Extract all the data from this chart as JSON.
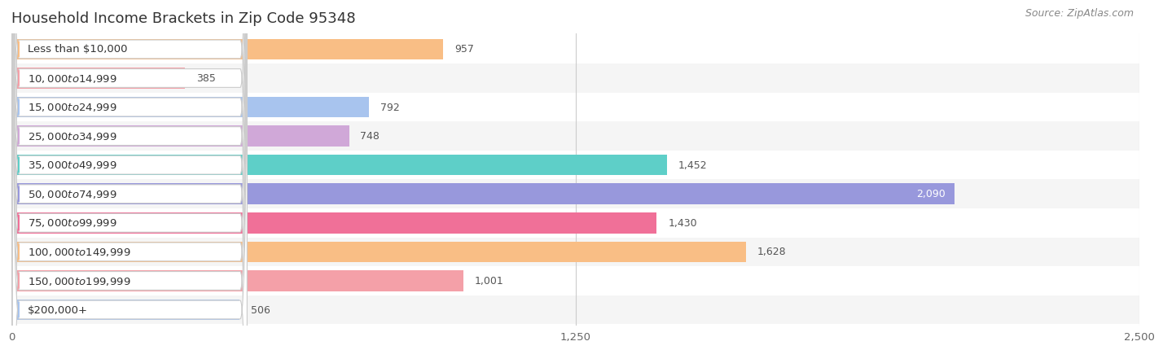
{
  "title": "Household Income Brackets in Zip Code 95348",
  "source": "Source: ZipAtlas.com",
  "categories": [
    "Less than $10,000",
    "$10,000 to $14,999",
    "$15,000 to $24,999",
    "$25,000 to $34,999",
    "$35,000 to $49,999",
    "$50,000 to $74,999",
    "$75,000 to $99,999",
    "$100,000 to $149,999",
    "$150,000 to $199,999",
    "$200,000+"
  ],
  "values": [
    957,
    385,
    792,
    748,
    1452,
    2090,
    1430,
    1628,
    1001,
    506
  ],
  "bar_colors": [
    "#F9BE85",
    "#F4A0A8",
    "#A8C4EE",
    "#D0A8D8",
    "#5ECFC8",
    "#9898DC",
    "#F07098",
    "#F9BE85",
    "#F4A0A8",
    "#A8C4EE"
  ],
  "bg_color": "#ffffff",
  "bar_bg_color": "#ebebeb",
  "row_bg_even": "#f5f5f5",
  "row_bg_odd": "#ffffff",
  "xlim": [
    0,
    2500
  ],
  "xticks": [
    0,
    1250,
    2500
  ],
  "title_fontsize": 13,
  "label_fontsize": 9.5,
  "value_fontsize": 9,
  "source_fontsize": 9
}
